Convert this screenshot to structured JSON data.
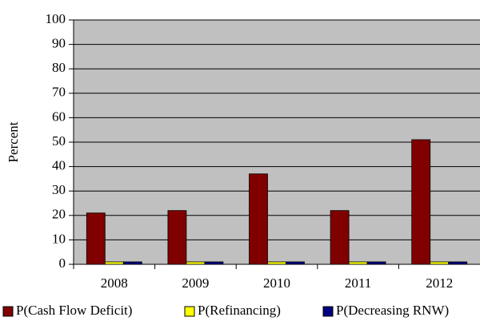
{
  "chart_data": {
    "type": "bar",
    "y_label": "Percent",
    "categories": [
      "2008",
      "2009",
      "2010",
      "2011",
      "2012"
    ],
    "series": [
      {
        "name": "P(Cash Flow Deficit)",
        "color": "#800000",
        "values": [
          21,
          22,
          37,
          22,
          51
        ]
      },
      {
        "name": "P(Refinancing)",
        "color": "#ffff00",
        "values": [
          1,
          1,
          1,
          1,
          1
        ]
      },
      {
        "name": "P(Decreasing RNW)",
        "color": "#000080",
        "values": [
          1,
          1,
          1,
          1,
          1
        ]
      }
    ],
    "ylim": [
      0,
      100
    ],
    "yticks": [
      0,
      10,
      20,
      30,
      40,
      50,
      60,
      70,
      80,
      90,
      100
    ],
    "grid": true,
    "legend": "bottom",
    "plot_background": "#c0c0c0"
  }
}
